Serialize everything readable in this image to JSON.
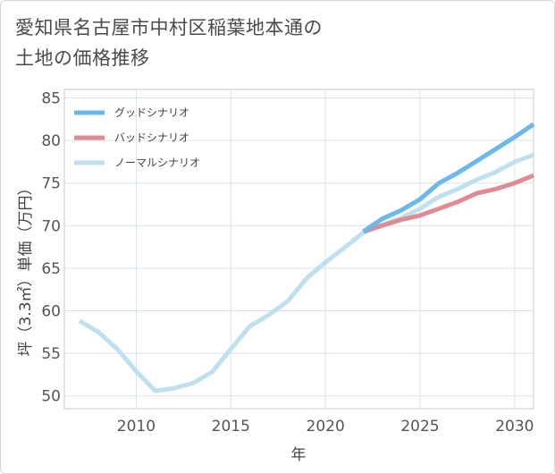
{
  "title_lines": [
    "愛知県名古屋市中村区稲葉地本通の",
    "土地の価格推移"
  ],
  "chart_data": {
    "type": "line",
    "title": "愛知県名古屋市中村区稲葉地本通の土地の価格推移",
    "xlabel": "年",
    "ylabel": "坪（3.3㎡）単価（万円）",
    "xlim": [
      2006.2,
      2031
    ],
    "ylim": [
      48.5,
      86
    ],
    "xticks": [
      2010,
      2015,
      2020,
      2025,
      2030
    ],
    "yticks": [
      50,
      55,
      60,
      65,
      70,
      75,
      80,
      85
    ],
    "grid": true,
    "legend_position": "top-left",
    "series": [
      {
        "name": "グッドシナリオ",
        "color": "#6cb8ea",
        "x": [
          2022,
          2023,
          2024,
          2025,
          2026,
          2027,
          2028,
          2029,
          2030,
          2031
        ],
        "y": [
          69.3,
          70.8,
          71.8,
          73.1,
          75.0,
          76.2,
          77.6,
          79.0,
          80.4,
          81.9
        ]
      },
      {
        "name": "バッドシナリオ",
        "color": "#de8b94",
        "x": [
          2022,
          2023,
          2024,
          2025,
          2026,
          2027,
          2028,
          2029,
          2030,
          2031
        ],
        "y": [
          69.3,
          70.0,
          70.7,
          71.2,
          72.0,
          72.8,
          73.8,
          74.3,
          75.0,
          75.9
        ]
      },
      {
        "name": "ノーマルシナリオ",
        "color": "#bfe0ef",
        "x": [
          2007,
          2008,
          2009,
          2010,
          2011,
          2012,
          2013,
          2014,
          2015,
          2016,
          2017,
          2018,
          2019,
          2020,
          2021,
          2022,
          2023,
          2024,
          2025,
          2026,
          2027,
          2028,
          2029,
          2030,
          2031
        ],
        "y": [
          58.8,
          57.5,
          55.5,
          52.9,
          50.6,
          50.9,
          51.5,
          52.8,
          55.5,
          58.2,
          59.5,
          61.1,
          63.8,
          65.7,
          67.4,
          69.2,
          70.1,
          70.9,
          72.0,
          73.4,
          74.3,
          75.4,
          76.3,
          77.5,
          78.3
        ]
      }
    ]
  }
}
